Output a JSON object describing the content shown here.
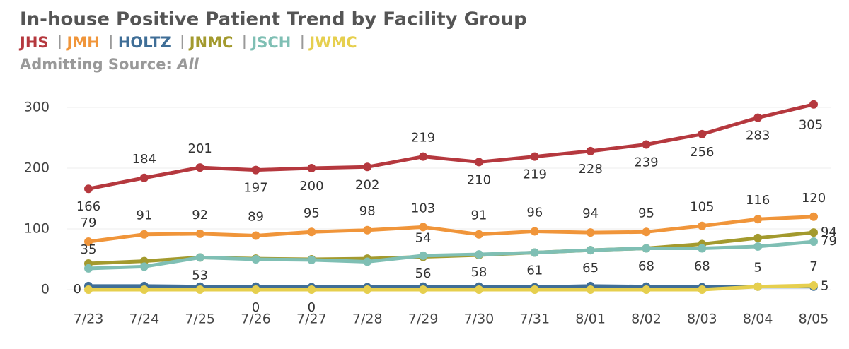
{
  "chart_data": {
    "type": "line",
    "title": "In-house Positive Patient Trend by Facility Group",
    "admitting_source_label": "Admitting Source:",
    "admitting_source_value": "All",
    "categories": [
      "7/23",
      "7/24",
      "7/25",
      "7/26",
      "7/27",
      "7/28",
      "7/29",
      "7/30",
      "7/31",
      "8/01",
      "8/02",
      "8/03",
      "8/04",
      "8/05"
    ],
    "ylim": [
      0,
      310
    ],
    "yticks": [
      0,
      100,
      200,
      300
    ],
    "grid": true,
    "series": [
      {
        "name": "JHS",
        "color": "#b5383e",
        "values": [
          166,
          184,
          201,
          197,
          200,
          202,
          219,
          210,
          219,
          228,
          239,
          256,
          283,
          305
        ],
        "value_labels": [
          "166",
          "184",
          "201",
          "197",
          "200",
          "202",
          "219",
          "210",
          "219",
          "228",
          "239",
          "256",
          "283",
          "305"
        ]
      },
      {
        "name": "JMH",
        "color": "#f0953a",
        "values": [
          79,
          91,
          92,
          89,
          95,
          98,
          103,
          91,
          96,
          94,
          95,
          105,
          116,
          120
        ],
        "value_labels": [
          "79",
          "91",
          "92",
          "89",
          "95",
          "98",
          "103",
          "91",
          "96",
          "94",
          "95",
          "105",
          "116",
          "120"
        ]
      },
      {
        "name": "HOLTZ",
        "color": "#3f6e97",
        "values": [
          6,
          6,
          5,
          5,
          4,
          4,
          5,
          5,
          4,
          6,
          5,
          4,
          5,
          5
        ],
        "value_labels": [
          null,
          null,
          null,
          null,
          null,
          null,
          null,
          null,
          null,
          null,
          null,
          null,
          null,
          "5"
        ]
      },
      {
        "name": "JNMC",
        "color": "#a39a2e",
        "values": [
          43,
          47,
          53,
          51,
          50,
          51,
          54,
          57,
          61,
          65,
          68,
          75,
          85,
          94
        ],
        "value_labels": [
          null,
          null,
          null,
          null,
          null,
          null,
          "54",
          null,
          null,
          null,
          null,
          null,
          null,
          "94"
        ]
      },
      {
        "name": "JSCH",
        "color": "#7fbfb4",
        "values": [
          35,
          38,
          53,
          50,
          49,
          46,
          56,
          58,
          61,
          65,
          68,
          68,
          71,
          79
        ],
        "value_labels": [
          "35",
          null,
          "53",
          null,
          null,
          null,
          "56",
          "58",
          "61",
          "65",
          "68",
          "68",
          null,
          "79"
        ]
      },
      {
        "name": "JWMC",
        "color": "#e6cf4e",
        "values": [
          0,
          0,
          0,
          0,
          0,
          0,
          0,
          0,
          0,
          0,
          0,
          0,
          5,
          7
        ],
        "value_labels": [
          "0",
          null,
          null,
          "0",
          "0",
          null,
          null,
          null,
          null,
          null,
          null,
          null,
          "5",
          "7"
        ]
      }
    ]
  }
}
